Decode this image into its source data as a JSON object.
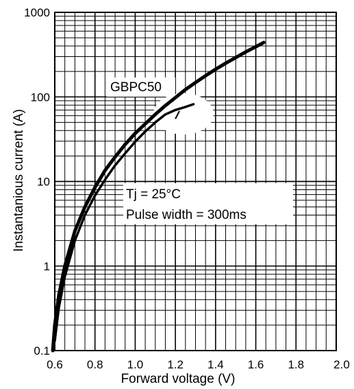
{
  "chart_data": {
    "type": "line",
    "title": "",
    "xlabel": "Forward voltage (V)",
    "ylabel": "Instantanious current (A)",
    "x_scale": "linear",
    "y_scale": "log",
    "xlim": [
      0.6,
      2.0
    ],
    "ylim": [
      0.1,
      1000
    ],
    "x_ticks": [
      0.6,
      0.8,
      1.0,
      1.2,
      1.4,
      1.6,
      1.8,
      2.0
    ],
    "x_tick_labels": [
      "0.6",
      "0.8",
      "1.0",
      "1.2",
      "1.4",
      "1.6",
      "1.8",
      "2.0"
    ],
    "y_ticks": [
      0.1,
      1,
      10,
      100,
      1000
    ],
    "y_tick_labels": [
      "0.1",
      "1",
      "10",
      "100",
      "1000"
    ],
    "grid": true,
    "colors": {
      "line": "#000000",
      "grid": "#000000",
      "background": "#ffffff"
    },
    "series": [
      {
        "name": "",
        "x": [
          0.59,
          0.6,
          0.62,
          0.65,
          0.7,
          0.75,
          0.8,
          0.85,
          0.9,
          0.95,
          1.0,
          1.05,
          1.1,
          1.15,
          1.2,
          1.25,
          1.3,
          1.35,
          1.4,
          1.45,
          1.5,
          1.55,
          1.6,
          1.64
        ],
        "y": [
          0.1,
          0.2,
          0.45,
          1.0,
          2.6,
          5.0,
          8.5,
          13.5,
          19.5,
          27.5,
          37,
          48,
          62,
          79,
          98,
          122,
          148,
          178,
          212,
          250,
          292,
          340,
          392,
          440
        ]
      },
      {
        "name": "",
        "x": [
          0.6,
          0.62,
          0.65,
          0.7,
          0.75,
          0.8,
          0.85,
          0.9,
          0.95,
          1.0,
          1.05,
          1.1,
          1.15,
          1.2,
          1.25,
          1.29
        ],
        "y": [
          0.13,
          0.32,
          0.75,
          2.0,
          4.0,
          6.8,
          10.5,
          15.5,
          21.5,
          29.5,
          39,
          50,
          62,
          70,
          76,
          82
        ]
      }
    ],
    "annotations": [
      {
        "text": "GBPC50"
      },
      {
        "text": "Tj = 25°C"
      },
      {
        "text": "Pulse width = 300ms"
      }
    ]
  }
}
